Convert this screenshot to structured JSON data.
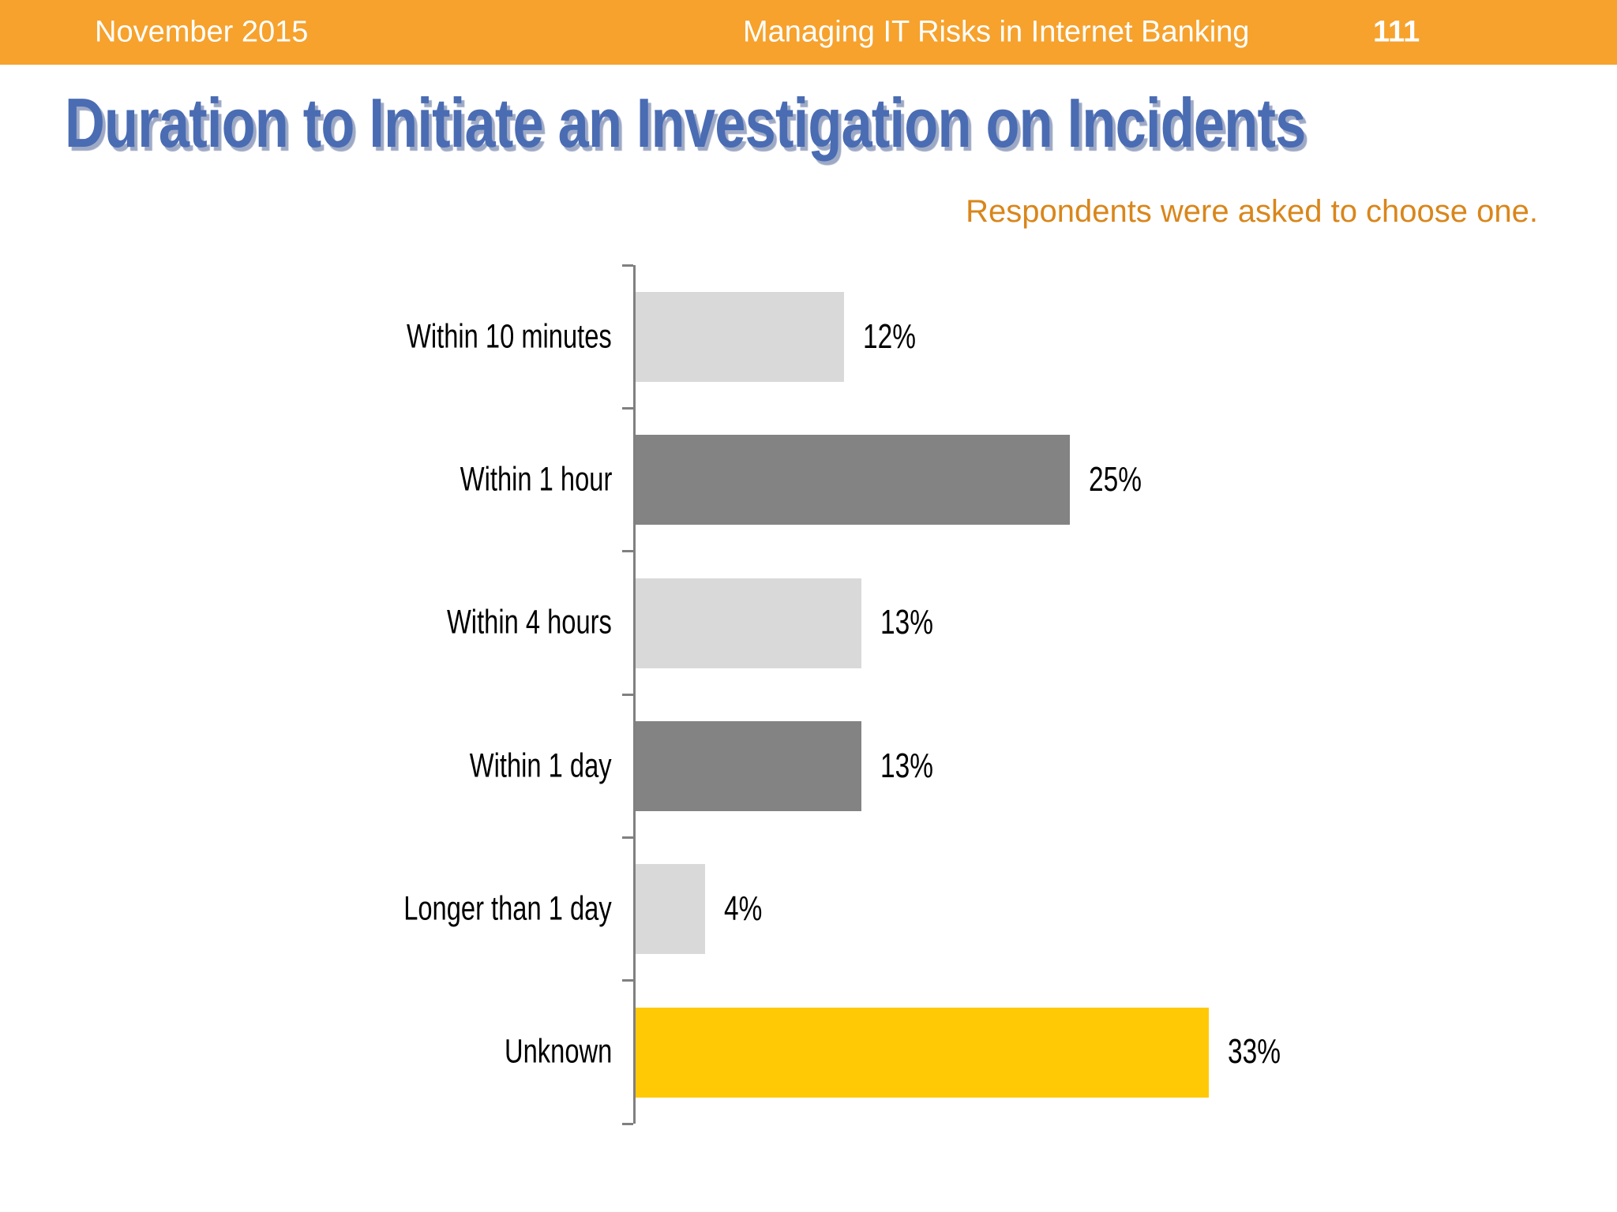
{
  "header": {
    "date": "November 2015",
    "document_title": "Managing IT Risks in Internet Banking",
    "page_number": "111",
    "background_color": "#F6A22D",
    "text_color": "#FFFFFF"
  },
  "slide": {
    "title": "Duration to Initiate an Investigation on Incidents",
    "title_color": "#4A6CB3",
    "subtitle": "Respondents were asked to choose one.",
    "subtitle_color": "#D9861B"
  },
  "chart_data": {
    "type": "bar",
    "orientation": "horizontal",
    "title": "Duration to Initiate an Investigation on Incidents",
    "xlabel": "",
    "ylabel": "",
    "categories": [
      "Within 10 minutes",
      "Within 1 hour",
      "Within 4 hours",
      "Within 1 day",
      "Longer than 1 day",
      "Unknown"
    ],
    "values": [
      12,
      25,
      13,
      13,
      4,
      33
    ],
    "value_labels": [
      "12%",
      "25%",
      "13%",
      "13%",
      "4%",
      "33%"
    ],
    "bar_colors": [
      "#D9D9D9",
      "#838383",
      "#D9D9D9",
      "#838383",
      "#D9D9D9",
      "#FFC905"
    ],
    "highlight_color": "#FFC905",
    "axis_color": "#808080",
    "xlim": [
      0,
      56
    ],
    "grid": false,
    "legend": false,
    "data_labels": "outside-end"
  }
}
